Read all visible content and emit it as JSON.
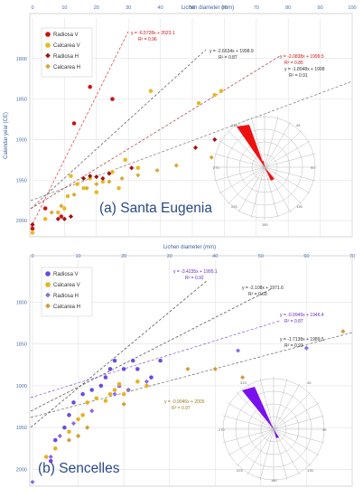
{
  "colors": {
    "radiosa_v": "#cc1111",
    "calcarea_v": "#e8b820",
    "radiosa_h": "#a01010",
    "calcarea_h": "#d8a838",
    "sencelles_radiosa_v": "#6a4ae0",
    "sencelles_calcarea_v": "#e8b020",
    "sencelles_radiosa_h": "#8a6ae8",
    "sencelles_calcarea_h": "#d09a3a",
    "axis_tick": "#4a6fb0",
    "rose_a": "#ee1010",
    "rose_b": "#7a10ee"
  },
  "chart_data": [
    {
      "type": "scatter",
      "title": "(a) Santa Eugenia",
      "xlabel": "Lichen diameter (mm)",
      "ylabel": "Calendar year (CE)",
      "xlim": [
        0,
        100
      ],
      "ylim": [
        2020,
        1750
      ],
      "y_inverted": true,
      "xticks": [
        "0",
        "10",
        "20",
        "30",
        "40",
        "50",
        "60",
        "70",
        "80",
        "90",
        "100"
      ],
      "yticks": [
        "1800",
        "1850",
        "1900",
        "1950",
        "2000"
      ],
      "legend": [
        "Radiosa V",
        "Calcarea V",
        "Radiosa H",
        "Calcarea H"
      ],
      "legend_position": "top-left",
      "series": [
        {
          "name": "Radiosa V",
          "marker": "circle",
          "color_key": "radiosa_v",
          "x": [
            0,
            4,
            9,
            13,
            18,
            25
          ],
          "y": [
            2010,
            1985,
            1995,
            1880,
            1835,
            1850
          ]
        },
        {
          "name": "Calcarea V",
          "marker": "circle",
          "color_key": "calcarea_v",
          "x": [
            0,
            4,
            8,
            10,
            11,
            12,
            14,
            16,
            18,
            20,
            22,
            25,
            27,
            29,
            33,
            37,
            52,
            57,
            59
          ],
          "y": [
            2015,
            1998,
            1990,
            1985,
            1970,
            1945,
            1955,
            1960,
            1948,
            1965,
            1952,
            1940,
            1960,
            1925,
            1935,
            1840,
            1855,
            1845,
            1840
          ]
        },
        {
          "name": "Radiosa H",
          "marker": "diamond",
          "color_key": "radiosa_h",
          "x": [
            0,
            8,
            10,
            12,
            16,
            18,
            20,
            22,
            24,
            31,
            51,
            57
          ],
          "y": [
            2005,
            1998,
            1998,
            1995,
            1948,
            1945,
            1946,
            1948,
            1942,
            1935,
            1910,
            1900
          ]
        },
        {
          "name": "Calcarea H",
          "marker": "diamond",
          "color_key": "calcarea_h",
          "x": [
            6,
            9,
            13,
            17,
            20,
            24,
            28,
            33,
            39,
            45,
            56
          ],
          "y": [
            1990,
            1982,
            1968,
            1960,
            1955,
            1952,
            1948,
            1944,
            1938,
            1932,
            1922
          ]
        }
      ],
      "trendlines": [
        {
          "label": "y = -6.5728x + 2023.1",
          "r2": "R² = 0.96",
          "color_key": "radiosa_v"
        },
        {
          "label": "y = -2.6634x + 1998.9",
          "r2": "R² = 0.87",
          "color_key": "axis_dark"
        },
        {
          "label": "y = -2.0838x + 1999.5",
          "r2": "R² = 0.85",
          "color_key": "radiosa_h"
        },
        {
          "label": "y = -1.8948x + 1998",
          "r2": "R² = 0.91",
          "color_key": "axis_dark"
        }
      ],
      "rose_labels": [
        "45",
        "270",
        "90",
        "225",
        "135",
        "180",
        "315"
      ],
      "rose_ring_labels": [
        "20",
        "40",
        "60"
      ]
    },
    {
      "type": "scatter",
      "title": "(b) Sencelles",
      "xlabel": "Lichen diameter (mm)",
      "ylabel": "",
      "xlim": [
        0,
        70
      ],
      "ylim": [
        2020,
        1750
      ],
      "y_inverted": true,
      "xticks": [
        "0",
        "10",
        "20",
        "30",
        "40",
        "50",
        "60",
        "70"
      ],
      "yticks": [
        "1800",
        "1850",
        "1900",
        "1950",
        "2000"
      ],
      "legend": [
        "Radiosa V",
        "Calcarea V",
        "Radiosa H",
        "Calcarea H"
      ],
      "legend_position": "top-left",
      "series": [
        {
          "name": "Radiosa V",
          "marker": "circle",
          "color_key": "sencelles_radiosa_v",
          "x": [
            4,
            5,
            7,
            8,
            9,
            11,
            13,
            15,
            16,
            17,
            18,
            19,
            20,
            22,
            23,
            26,
            28
          ],
          "y": [
            1990,
            1965,
            1950,
            1935,
            1920,
            1910,
            1905,
            1900,
            1890,
            1880,
            1870,
            1900,
            1880,
            1870,
            1880,
            1890,
            1870
          ]
        },
        {
          "name": "Calcarea V",
          "marker": "circle",
          "color_key": "sencelles_calcarea_v",
          "x": [
            3,
            5,
            8,
            10,
            11,
            12,
            14,
            16,
            17,
            18,
            19,
            20,
            21,
            23,
            25
          ],
          "y": [
            1985,
            1975,
            1955,
            1940,
            1935,
            1920,
            1915,
            1918,
            1910,
            1905,
            1898,
            1910,
            1905,
            1895,
            1900
          ]
        },
        {
          "name": "Radiosa H",
          "marker": "diamond",
          "color_key": "sencelles_radiosa_h",
          "x": [
            0,
            4,
            6,
            9,
            13,
            18,
            21,
            25,
            45,
            60
          ],
          "y": [
            2015,
            1985,
            1960,
            1945,
            1930,
            1910,
            1905,
            1895,
            1858,
            1855
          ]
        },
        {
          "name": "Calcarea H",
          "marker": "diamond",
          "color_key": "sencelles_calcarea_h",
          "x": [
            8,
            10,
            12,
            20,
            34,
            40,
            46,
            68
          ],
          "y": [
            1965,
            1960,
            1950,
            1922,
            1880,
            1880,
            1890,
            1835
          ]
        }
      ],
      "trendlines": [
        {
          "label": "y = -3.4235x + 1995.1",
          "r2": "R² = 0.92",
          "color_key": "sencelles_radiosa_v"
        },
        {
          "label": "y = -2.108x + 1971.6",
          "r2": "R² = 0.69",
          "color_key": "axis_dark"
        },
        {
          "label": "y = -0.9949x + 1946.4",
          "r2": "R² = 0.87",
          "color_key": "sencelles_radiosa_h"
        },
        {
          "label": "y = -1.7138x + 1989.5",
          "r2": "R² = 0.93",
          "color_key": "axis_dark"
        },
        {
          "label": "y = -0.9946x + 2005",
          "r2": "R² = 0.97",
          "color_key": "sencelles_calcarea_h"
        }
      ],
      "rose_labels": [
        "315",
        "45",
        "90",
        "270",
        "225",
        "135",
        "180"
      ],
      "rose_ring_labels": [
        "20",
        "40",
        "60",
        "80"
      ]
    }
  ]
}
